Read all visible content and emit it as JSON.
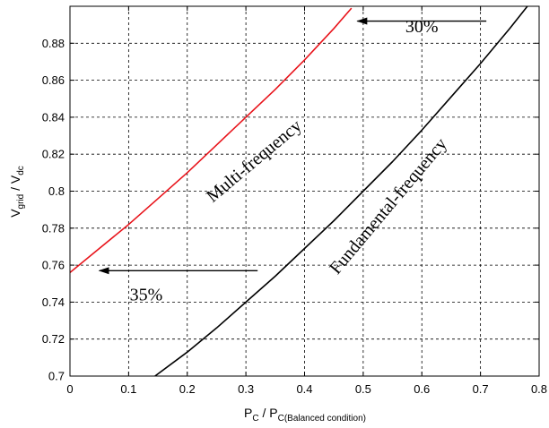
{
  "chart_data": {
    "type": "line",
    "xlabel_main": "P",
    "xlabel_sub1": "C",
    "xlabel_mid": " / P",
    "xlabel_sub2": "C(Balanced condition)",
    "ylabel_main": "V",
    "ylabel_sub1": "grid",
    "ylabel_mid": " / V",
    "ylabel_sub2": "dc",
    "xlim": [
      0,
      0.8
    ],
    "ylim": [
      0.7,
      0.9
    ],
    "xticks": [
      0,
      0.1,
      0.2,
      0.3,
      0.4,
      0.5,
      0.6,
      0.7,
      0.8
    ],
    "xtick_labels": [
      "0",
      "0.1",
      "0.2",
      "0.3",
      "0.4",
      "0.5",
      "0.6",
      "0.7",
      "0.8"
    ],
    "yticks": [
      0.7,
      0.72,
      0.74,
      0.76,
      0.78,
      0.8,
      0.82,
      0.84,
      0.86,
      0.88
    ],
    "ytick_labels": [
      "0.7",
      "0.72",
      "0.74",
      "0.76",
      "0.78",
      "0.8",
      "0.82",
      "0.84",
      "0.86",
      "0.88"
    ],
    "grid": true,
    "series": [
      {
        "color": "#e8141b",
        "x": [
          0,
          0.05,
          0.1,
          0.15,
          0.2,
          0.25,
          0.3,
          0.35,
          0.4,
          0.45,
          0.48
        ],
        "y": [
          0.756,
          0.769,
          0.782,
          0.796,
          0.81,
          0.825,
          0.84,
          0.855,
          0.871,
          0.888,
          0.899
        ]
      },
      {
        "color": "#000000",
        "x": [
          0.145,
          0.2,
          0.25,
          0.3,
          0.35,
          0.4,
          0.45,
          0.5,
          0.55,
          0.6,
          0.65,
          0.7,
          0.75,
          0.78
        ],
        "y": [
          0.7,
          0.713,
          0.726,
          0.74,
          0.754,
          0.769,
          0.784,
          0.8,
          0.816,
          0.833,
          0.851,
          0.869,
          0.888,
          0.9
        ]
      }
    ],
    "annotations": [
      {
        "text": "Multi-frequency",
        "x": 0.32,
        "y": 0.814,
        "rotation": -40
      },
      {
        "text": "Fundamental-frequency",
        "x": 0.55,
        "y": 0.79,
        "rotation": -50
      },
      {
        "text": "30%",
        "x": 0.6,
        "y": 0.886,
        "rotation": 0
      },
      {
        "text": "35%",
        "x": 0.13,
        "y": 0.741,
        "rotation": 0
      }
    ],
    "arrows": [
      {
        "from": [
          0.71,
          0.892
        ],
        "to": [
          0.49,
          0.892
        ]
      },
      {
        "from": [
          0.32,
          0.757
        ],
        "to": [
          0.05,
          0.757
        ]
      }
    ]
  }
}
